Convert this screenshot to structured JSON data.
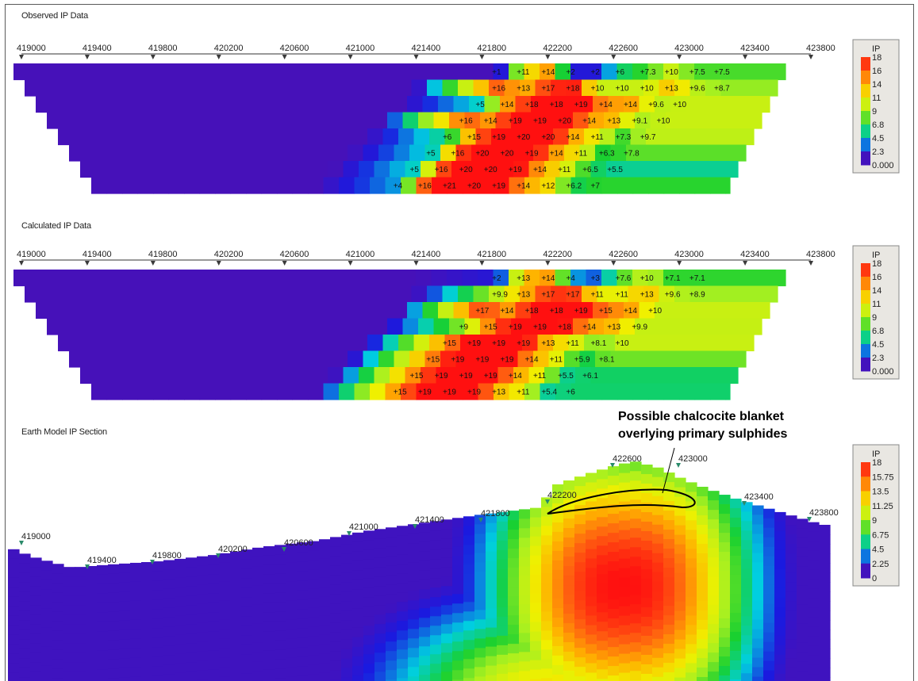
{
  "colors": {
    "background": "#ffffff",
    "frame": "#5a5a5a",
    "ramp": [
      "#6a0a9a",
      "#1a1ae0",
      "#00cfe0",
      "#18d030",
      "#a8f020",
      "#f0f000",
      "#ffb000",
      "#ff6010",
      "#ff1010"
    ]
  },
  "chart_data": [
    {
      "type": "heatmap",
      "title": "Observed IP Data",
      "x_ticks": [
        "419000",
        "419400",
        "419800",
        "420200",
        "420600",
        "421000",
        "421400",
        "421800",
        "422200",
        "422600",
        "423000",
        "423400",
        "423800"
      ],
      "xlim": [
        419000,
        423800
      ],
      "legend": {
        "title": "IP",
        "labels": [
          "18",
          "16",
          "14",
          "11",
          "9",
          "6.8",
          "4.5",
          "2.3",
          "0.000"
        ],
        "placement": "right"
      },
      "rows": [
        {
          "n": 1,
          "x": [
            421900,
            422050,
            422200,
            422350,
            422500,
            422650,
            422800,
            422950,
            423100,
            423250
          ],
          "values": [
            1,
            11,
            14,
            2,
            2,
            6,
            7.3,
            10,
            7.5,
            7.5
          ]
        },
        {
          "n": 2,
          "x": [
            421900,
            422050,
            422200,
            422350,
            422500,
            422650,
            422800,
            422950,
            423100,
            423250
          ],
          "values": [
            16,
            13,
            17,
            18,
            10,
            10,
            10,
            13,
            9.6,
            8.7
          ]
        },
        {
          "n": 3,
          "x": [
            421800,
            421950,
            422100,
            422250,
            422400,
            422550,
            422700,
            422850,
            423000
          ],
          "values": [
            5,
            14,
            18,
            18,
            19,
            14,
            14,
            9.6,
            10
          ]
        },
        {
          "n": 4,
          "x": [
            421700,
            421850,
            422000,
            422150,
            422300,
            422450,
            422600,
            422750,
            422900
          ],
          "values": [
            16,
            14,
            19,
            19,
            20,
            14,
            13,
            9.1,
            10
          ]
        },
        {
          "n": 5,
          "x": [
            421600,
            421750,
            421900,
            422050,
            422200,
            422350,
            422500,
            422650,
            422800
          ],
          "values": [
            6,
            15,
            19,
            20,
            20,
            14,
            11,
            7.3,
            9.7
          ]
        },
        {
          "n": 6,
          "x": [
            421500,
            421650,
            421800,
            421950,
            422100,
            422250,
            422400,
            422550,
            422700
          ],
          "values": [
            5,
            16,
            20,
            20,
            19,
            14,
            11,
            6.3,
            7.8
          ]
        },
        {
          "n": 7,
          "x": [
            421400,
            421550,
            421700,
            421850,
            422000,
            422150,
            422300,
            422450,
            422600
          ],
          "values": [
            5,
            16,
            20,
            20,
            19,
            14,
            11,
            6.5,
            5.5
          ]
        },
        {
          "n": 8,
          "x": [
            421300,
            421450,
            421600,
            421750,
            421900,
            422050,
            422200,
            422350,
            422500
          ],
          "values": [
            4,
            16,
            21,
            20,
            19,
            14,
            12,
            6.2,
            7
          ]
        }
      ]
    },
    {
      "type": "heatmap",
      "title": "Calculated IP Data",
      "x_ticks": [
        "419000",
        "419400",
        "419800",
        "420200",
        "420600",
        "421000",
        "421400",
        "421800",
        "422200",
        "422600",
        "423000",
        "423400",
        "423800"
      ],
      "xlim": [
        419000,
        423800
      ],
      "legend": {
        "title": "IP",
        "labels": [
          "18",
          "16",
          "14",
          "11",
          "9",
          "6.8",
          "4.5",
          "2.3",
          "0.000"
        ],
        "placement": "right"
      },
      "rows": [
        {
          "n": 1,
          "x": [
            421900,
            422050,
            422200,
            422350,
            422500,
            422650,
            422800,
            422950,
            423100
          ],
          "values": [
            2,
            13,
            14,
            4,
            3,
            7.6,
            10,
            7.1,
            7.1
          ]
        },
        {
          "n": 2,
          "x": [
            421900,
            422050,
            422200,
            422350,
            422500,
            422650,
            422800,
            422950,
            423100
          ],
          "values": [
            9.9,
            13,
            17,
            17,
            11,
            11,
            13,
            9.6,
            8.9
          ]
        },
        {
          "n": 3,
          "x": [
            421800,
            421950,
            422100,
            422250,
            422400,
            422550,
            422700,
            422850
          ],
          "values": [
            17,
            14,
            18,
            18,
            19,
            15,
            14,
            10
          ]
        },
        {
          "n": 4,
          "x": [
            421700,
            421850,
            422000,
            422150,
            422300,
            422450,
            422600,
            422750
          ],
          "values": [
            9,
            15,
            19,
            19,
            18,
            14,
            13,
            9.9
          ]
        },
        {
          "n": 5,
          "x": [
            421600,
            421750,
            421900,
            422050,
            422200,
            422350,
            422500,
            422650
          ],
          "values": [
            15,
            19,
            19,
            19,
            13,
            11,
            8.1,
            10
          ]
        },
        {
          "n": 6,
          "x": [
            421500,
            421650,
            421800,
            421950,
            422100,
            422250,
            422400,
            422550
          ],
          "values": [
            15,
            19,
            19,
            19,
            14,
            11,
            5.9,
            8.1
          ]
        },
        {
          "n": 7,
          "x": [
            421400,
            421550,
            421700,
            421850,
            422000,
            422150,
            422300,
            422450
          ],
          "values": [
            15,
            19,
            19,
            19,
            14,
            11,
            5.5,
            6.1
          ]
        },
        {
          "n": 8,
          "x": [
            421300,
            421450,
            421600,
            421750,
            421900,
            422050,
            422200,
            422350
          ],
          "values": [
            15,
            19,
            19,
            19,
            13,
            11,
            5.4,
            6
          ]
        }
      ]
    },
    {
      "type": "heatmap",
      "title": "Earth Model IP Section",
      "x_ticks": [
        "419000",
        "419400",
        "419800",
        "420200",
        "420600",
        "421000",
        "421400",
        "421800",
        "422200",
        "422600",
        "423000",
        "423400",
        "423800"
      ],
      "xlim": [
        419000,
        423800
      ],
      "legend": {
        "title": "IP",
        "labels": [
          "18",
          "15.75",
          "13.5",
          "11.25",
          "9",
          "6.75",
          "4.5",
          "2.25",
          "0"
        ],
        "placement": "right"
      },
      "anomaly": {
        "center_x": 422400,
        "peak_value": 18
      },
      "annotation": {
        "lines": [
          "Possible chalcocite blanket",
          "overlying primary sulphides"
        ]
      }
    }
  ]
}
